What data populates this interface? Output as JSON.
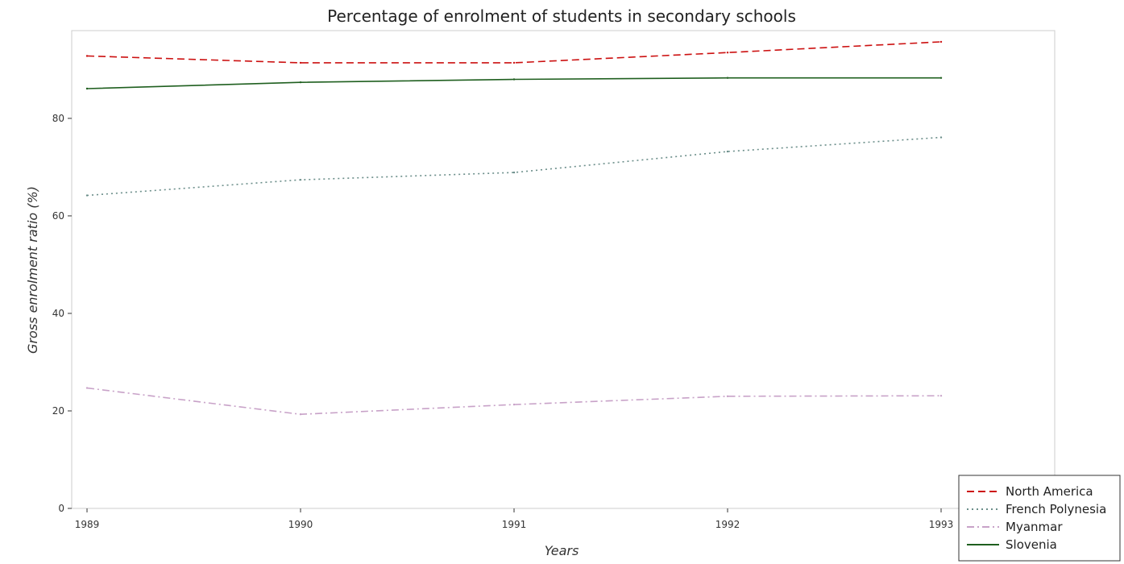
{
  "chart_data": {
    "type": "line",
    "title": "Percentage of enrolment of students in secondary schools",
    "xlabel": "Years",
    "ylabel": "Gross enrolment ratio (%)",
    "categories": [
      "1989",
      "1990",
      "1991",
      "1992",
      "1993"
    ],
    "y_ticks": [
      "0",
      "20",
      "40",
      "60",
      "80"
    ],
    "ylim": [
      0,
      98
    ],
    "grid": false,
    "legend_position": "bottom-right",
    "series": [
      {
        "name": "North America",
        "color": "#cc1111",
        "dash": "dash",
        "values": [
          92.8,
          91.4,
          91.4,
          93.5,
          95.7
        ]
      },
      {
        "name": "French Polynesia",
        "color": "#6b8e8a",
        "dash": "dot",
        "values": [
          64.2,
          67.4,
          68.9,
          73.2,
          76.1
        ]
      },
      {
        "name": "Myanmar",
        "color": "#c8a2c8",
        "dash": "dashdot",
        "values": [
          24.7,
          19.3,
          21.3,
          23.0,
          23.1
        ]
      },
      {
        "name": "Slovenia",
        "color": "#1f5f1f",
        "dash": "solid",
        "values": [
          86.1,
          87.4,
          88.0,
          88.3,
          88.3
        ]
      }
    ]
  }
}
